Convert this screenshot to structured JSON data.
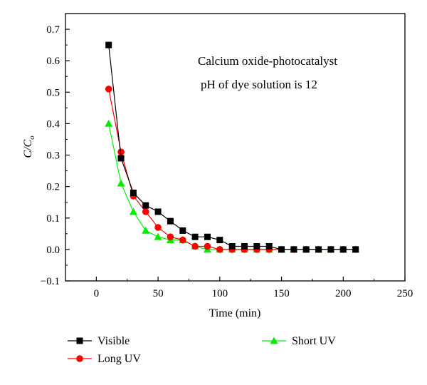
{
  "chart_data": {
    "type": "line",
    "xlabel": "Time (min)",
    "ylabel_main": "C/C",
    "ylabel_sub": "o",
    "annotations": [
      "Calcium oxide-photocatalyst",
      "pH of dye solution is 12"
    ],
    "xlim": [
      -25,
      250
    ],
    "ylim": [
      -0.1,
      0.75
    ],
    "xticks": [
      0,
      50,
      100,
      150,
      200,
      250
    ],
    "yticks": [
      -0.1,
      0.0,
      0.1,
      0.2,
      0.3,
      0.4,
      0.5,
      0.6,
      0.7
    ],
    "xtick_labels": [
      "0",
      "50",
      "100",
      "150",
      "200",
      "250"
    ],
    "ytick_labels": [
      "−0.1",
      "0.0",
      "0.1",
      "0.2",
      "0.3",
      "0.4",
      "0.5",
      "0.6",
      "0.7"
    ],
    "x": [
      10,
      20,
      30,
      40,
      50,
      60,
      70,
      80,
      90,
      100,
      110,
      120,
      130,
      140,
      150,
      160,
      170,
      180,
      190,
      200,
      210
    ],
    "series": [
      {
        "name": "Visible",
        "color": "#000000",
        "marker": "square",
        "values": [
          0.65,
          0.29,
          0.18,
          0.14,
          0.12,
          0.09,
          0.06,
          0.04,
          0.04,
          0.03,
          0.01,
          0.01,
          0.01,
          0.01,
          0.0,
          0.0,
          0.0,
          0.0,
          0.0,
          0.0,
          0.0
        ]
      },
      {
        "name": "Long UV",
        "color": "#ff0000",
        "marker": "circle",
        "values": [
          0.51,
          0.31,
          0.17,
          0.12,
          0.07,
          0.04,
          0.03,
          0.01,
          0.01,
          0.0,
          0.0,
          0.0,
          0.0,
          0.0,
          0.0,
          0.0,
          0.0,
          0.0,
          0.0,
          0.0,
          0.0
        ]
      },
      {
        "name": "Short UV",
        "color": "#00ee00",
        "marker": "triangle",
        "values": [
          0.4,
          0.21,
          0.12,
          0.06,
          0.04,
          0.03,
          0.03,
          0.01,
          0.0,
          0.0,
          0.0,
          0.0,
          0.0,
          0.0,
          0.0,
          0.0,
          0.0,
          0.0,
          0.0,
          0.0,
          0.0
        ]
      }
    ],
    "legend_placement": "bottom"
  }
}
